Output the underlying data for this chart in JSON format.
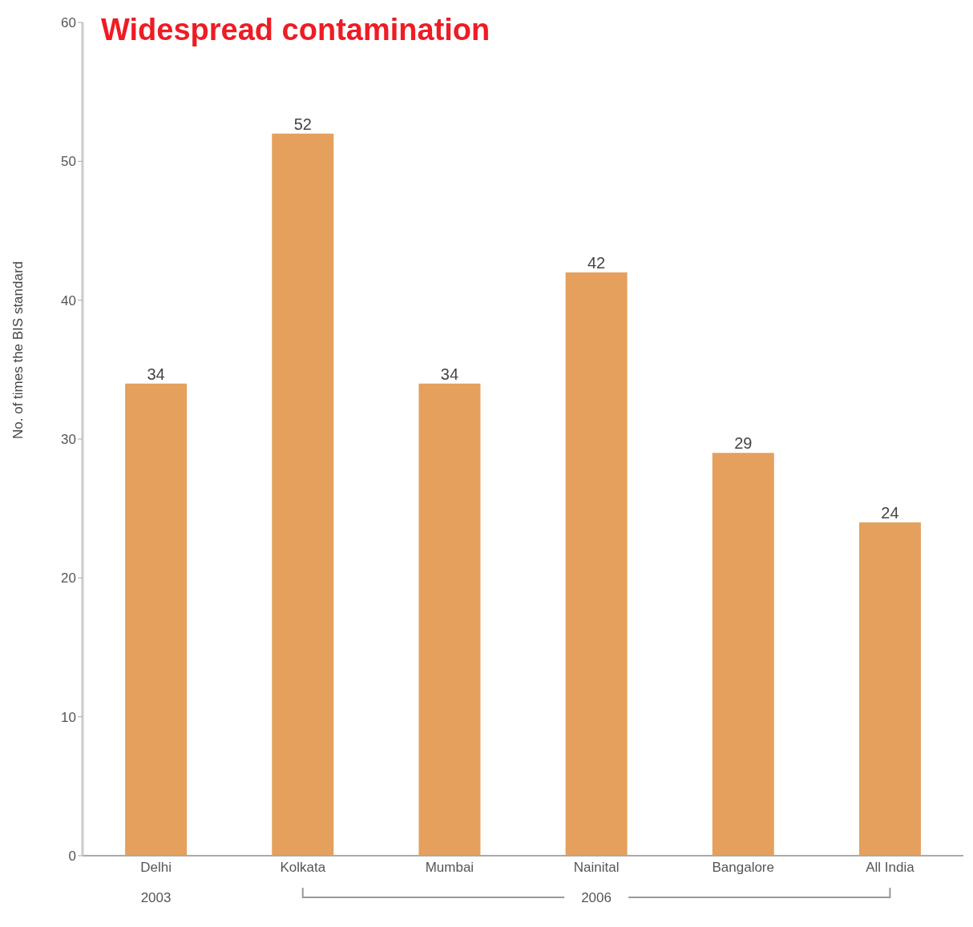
{
  "chart_data": {
    "type": "bar",
    "title": "Widespread contamination",
    "ylabel": "No. of times the BIS standard",
    "categories": [
      "Delhi",
      "Kolkata",
      "Mumbai",
      "Nainital",
      "Bangalore",
      "All India"
    ],
    "values": [
      34,
      52,
      34,
      42,
      29,
      24
    ],
    "color": "#e4a05c",
    "ylim": [
      0,
      60
    ],
    "yticks": [
      0,
      10,
      20,
      30,
      40,
      50,
      60
    ],
    "grid": false,
    "data_labels": true,
    "annotations": [
      "2003",
      "2006"
    ]
  }
}
